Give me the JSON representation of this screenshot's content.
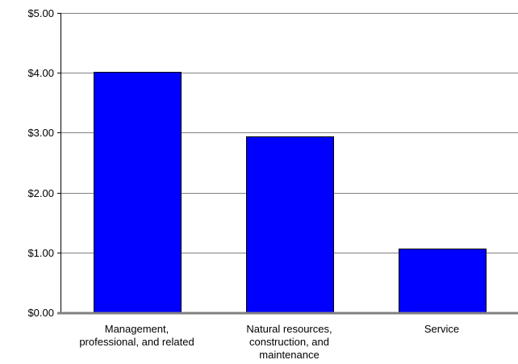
{
  "chart_data": {
    "type": "bar",
    "categories": [
      "Management, professional, and related",
      "Natural resources, construction, and maintenance",
      "Service"
    ],
    "category_label_lines": [
      [
        "Management,",
        "professional, and related"
      ],
      [
        "Natural resources,",
        "construction, and",
        "maintenance"
      ],
      [
        "Service"
      ]
    ],
    "values": [
      4.02,
      2.94,
      1.06
    ],
    "title": "",
    "xlabel": "",
    "ylabel": "",
    "ylim": [
      0,
      5
    ],
    "yticks": [
      0,
      1,
      2,
      3,
      4,
      5
    ],
    "ytick_labels": [
      "$0.00",
      "$1.00",
      "$2.00",
      "$3.00",
      "$4.00",
      "$5.00"
    ],
    "grid": true,
    "legend": "none",
    "colors": {
      "bar_fill": "#0000ff",
      "bar_stroke": "#000000",
      "gridline": "#808080",
      "axis": "#808080"
    }
  }
}
